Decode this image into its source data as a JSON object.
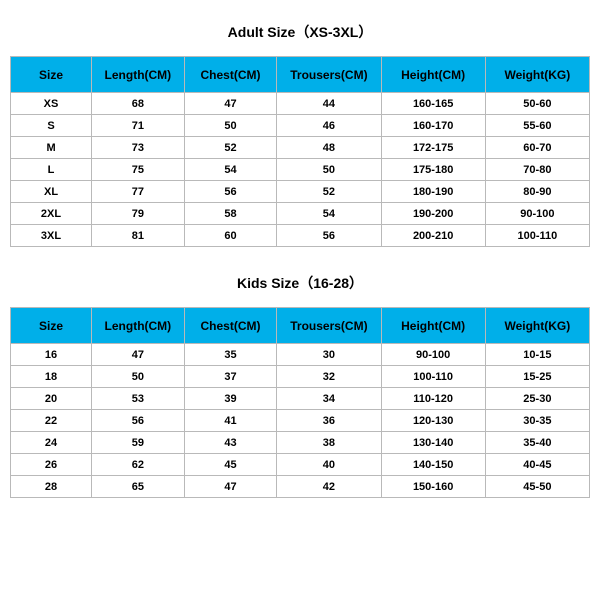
{
  "colors": {
    "header_bg": "#00afe9",
    "border": "#b9b9b9",
    "text": "#000000",
    "bg": "#ffffff"
  },
  "adult": {
    "title": "Adult Size（XS-3XL）",
    "columns": [
      "Size",
      "Length(CM)",
      "Chest(CM)",
      "Trousers(CM)",
      "Height(CM)",
      "Weight(KG)"
    ],
    "rows": [
      [
        "XS",
        "68",
        "47",
        "44",
        "160-165",
        "50-60"
      ],
      [
        "S",
        "71",
        "50",
        "46",
        "160-170",
        "55-60"
      ],
      [
        "M",
        "73",
        "52",
        "48",
        "172-175",
        "60-70"
      ],
      [
        "L",
        "75",
        "54",
        "50",
        "175-180",
        "70-80"
      ],
      [
        "XL",
        "77",
        "56",
        "52",
        "180-190",
        "80-90"
      ],
      [
        "2XL",
        "79",
        "58",
        "54",
        "190-200",
        "90-100"
      ],
      [
        "3XL",
        "81",
        "60",
        "56",
        "200-210",
        "100-110"
      ]
    ]
  },
  "kids": {
    "title": "Kids Size（16-28）",
    "columns": [
      "Size",
      "Length(CM)",
      "Chest(CM)",
      "Trousers(CM)",
      "Height(CM)",
      "Weight(KG)"
    ],
    "rows": [
      [
        "16",
        "47",
        "35",
        "30",
        "90-100",
        "10-15"
      ],
      [
        "18",
        "50",
        "37",
        "32",
        "100-110",
        "15-25"
      ],
      [
        "20",
        "53",
        "39",
        "34",
        "110-120",
        "25-30"
      ],
      [
        "22",
        "56",
        "41",
        "36",
        "120-130",
        "30-35"
      ],
      [
        "24",
        "59",
        "43",
        "38",
        "130-140",
        "35-40"
      ],
      [
        "26",
        "62",
        "45",
        "40",
        "140-150",
        "40-45"
      ],
      [
        "28",
        "65",
        "47",
        "42",
        "150-160",
        "45-50"
      ]
    ]
  },
  "column_classes": [
    "col-size",
    "col-length",
    "col-chest",
    "col-trous",
    "col-height",
    "col-weight"
  ]
}
